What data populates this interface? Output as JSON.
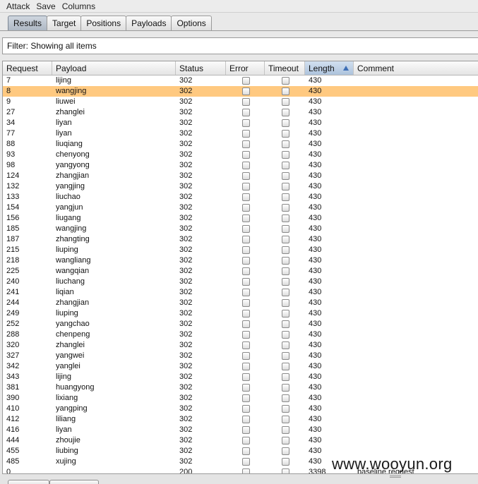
{
  "menu": [
    "Attack",
    "Save",
    "Columns"
  ],
  "tabs": [
    "Results",
    "Target",
    "Positions",
    "Payloads",
    "Options"
  ],
  "active_tab": "Results",
  "filter": {
    "text": "Filter: Showing all items"
  },
  "columns": [
    "Request",
    "Payload",
    "Status",
    "Error",
    "Timeout",
    "Length",
    "Comment"
  ],
  "sorted_column": "Length",
  "selected_request": "8",
  "rows": [
    {
      "request": "7",
      "payload": "lijing",
      "status": "302",
      "length": "430",
      "comment": ""
    },
    {
      "request": "8",
      "payload": "wangjing",
      "status": "302",
      "length": "430",
      "comment": ""
    },
    {
      "request": "9",
      "payload": "liuwei",
      "status": "302",
      "length": "430",
      "comment": ""
    },
    {
      "request": "27",
      "payload": "zhanglei",
      "status": "302",
      "length": "430",
      "comment": ""
    },
    {
      "request": "34",
      "payload": "liyan",
      "status": "302",
      "length": "430",
      "comment": ""
    },
    {
      "request": "77",
      "payload": "liyan",
      "status": "302",
      "length": "430",
      "comment": ""
    },
    {
      "request": "88",
      "payload": "liuqiang",
      "status": "302",
      "length": "430",
      "comment": ""
    },
    {
      "request": "93",
      "payload": "chenyong",
      "status": "302",
      "length": "430",
      "comment": ""
    },
    {
      "request": "98",
      "payload": "yangyong",
      "status": "302",
      "length": "430",
      "comment": ""
    },
    {
      "request": "124",
      "payload": "zhangjian",
      "status": "302",
      "length": "430",
      "comment": ""
    },
    {
      "request": "132",
      "payload": "yangjing",
      "status": "302",
      "length": "430",
      "comment": ""
    },
    {
      "request": "133",
      "payload": "liuchao",
      "status": "302",
      "length": "430",
      "comment": ""
    },
    {
      "request": "154",
      "payload": "yangjun",
      "status": "302",
      "length": "430",
      "comment": ""
    },
    {
      "request": "156",
      "payload": "liugang",
      "status": "302",
      "length": "430",
      "comment": ""
    },
    {
      "request": "185",
      "payload": "wangjing",
      "status": "302",
      "length": "430",
      "comment": ""
    },
    {
      "request": "187",
      "payload": "zhangting",
      "status": "302",
      "length": "430",
      "comment": ""
    },
    {
      "request": "215",
      "payload": "liuping",
      "status": "302",
      "length": "430",
      "comment": ""
    },
    {
      "request": "218",
      "payload": "wangliang",
      "status": "302",
      "length": "430",
      "comment": ""
    },
    {
      "request": "225",
      "payload": "wangqian",
      "status": "302",
      "length": "430",
      "comment": ""
    },
    {
      "request": "240",
      "payload": "liuchang",
      "status": "302",
      "length": "430",
      "comment": ""
    },
    {
      "request": "241",
      "payload": "liqian",
      "status": "302",
      "length": "430",
      "comment": ""
    },
    {
      "request": "244",
      "payload": "zhangjian",
      "status": "302",
      "length": "430",
      "comment": ""
    },
    {
      "request": "249",
      "payload": "liuping",
      "status": "302",
      "length": "430",
      "comment": ""
    },
    {
      "request": "252",
      "payload": "yangchao",
      "status": "302",
      "length": "430",
      "comment": ""
    },
    {
      "request": "288",
      "payload": "chenpeng",
      "status": "302",
      "length": "430",
      "comment": ""
    },
    {
      "request": "320",
      "payload": "zhanglei",
      "status": "302",
      "length": "430",
      "comment": ""
    },
    {
      "request": "327",
      "payload": "yangwei",
      "status": "302",
      "length": "430",
      "comment": ""
    },
    {
      "request": "342",
      "payload": "yanglei",
      "status": "302",
      "length": "430",
      "comment": ""
    },
    {
      "request": "343",
      "payload": "lijing",
      "status": "302",
      "length": "430",
      "comment": ""
    },
    {
      "request": "381",
      "payload": "huangyong",
      "status": "302",
      "length": "430",
      "comment": ""
    },
    {
      "request": "390",
      "payload": "lixiang",
      "status": "302",
      "length": "430",
      "comment": ""
    },
    {
      "request": "410",
      "payload": "yangping",
      "status": "302",
      "length": "430",
      "comment": ""
    },
    {
      "request": "412",
      "payload": "liliang",
      "status": "302",
      "length": "430",
      "comment": ""
    },
    {
      "request": "416",
      "payload": "liyan",
      "status": "302",
      "length": "430",
      "comment": ""
    },
    {
      "request": "444",
      "payload": "zhoujie",
      "status": "302",
      "length": "430",
      "comment": ""
    },
    {
      "request": "455",
      "payload": "liubing",
      "status": "302",
      "length": "430",
      "comment": ""
    },
    {
      "request": "485",
      "payload": "xujing",
      "status": "302",
      "length": "430",
      "comment": ""
    },
    {
      "request": "0",
      "payload": "",
      "status": "200",
      "length": "3398",
      "comment": "baseline request"
    }
  ],
  "watermark": "www.wooyun.org",
  "colors": {
    "selected_row": "#ffc980",
    "sort_header": "#adc3dc"
  }
}
